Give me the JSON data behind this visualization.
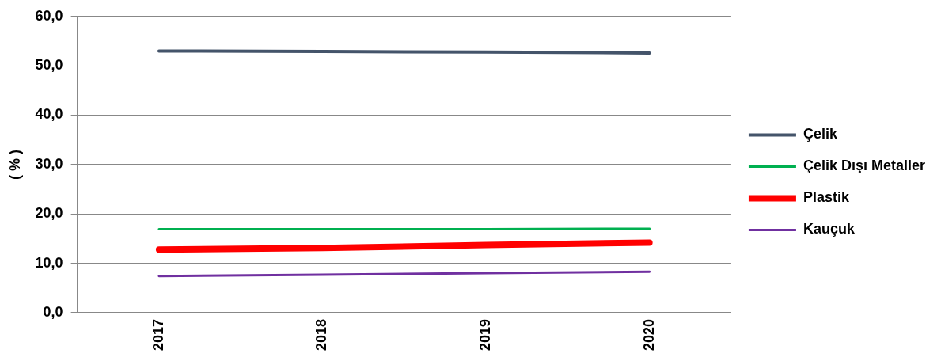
{
  "chart_data": {
    "type": "line",
    "ylabel": "( % )",
    "categories": [
      "2017",
      "2018",
      "2019",
      "2020"
    ],
    "series": [
      {
        "name": "Çelik",
        "color": "#44546a",
        "values": [
          53.0,
          52.9,
          52.8,
          52.6
        ]
      },
      {
        "name": "Çelik Dışı Metaller",
        "color": "#00b050",
        "values": [
          16.9,
          16.9,
          16.9,
          17.0
        ]
      },
      {
        "name": "Plastik",
        "color": "#ff0000",
        "values": [
          12.8,
          13.1,
          13.7,
          14.2
        ]
      },
      {
        "name": "Kauçuk",
        "color": "#7030a0",
        "values": [
          7.4,
          7.7,
          8.0,
          8.3
        ]
      }
    ],
    "ylim": [
      0,
      60
    ],
    "yticks": [
      {
        "value": 0,
        "label": "0,0"
      },
      {
        "value": 10,
        "label": "10,0"
      },
      {
        "value": 20,
        "label": "20,0"
      },
      {
        "value": 30,
        "label": "30,0"
      },
      {
        "value": 40,
        "label": "40,0"
      },
      {
        "value": 50,
        "label": "50,0"
      },
      {
        "value": 60,
        "label": "60,0"
      }
    ],
    "grid": "y",
    "legend": "right",
    "marker": "none",
    "line_style": "solid"
  }
}
